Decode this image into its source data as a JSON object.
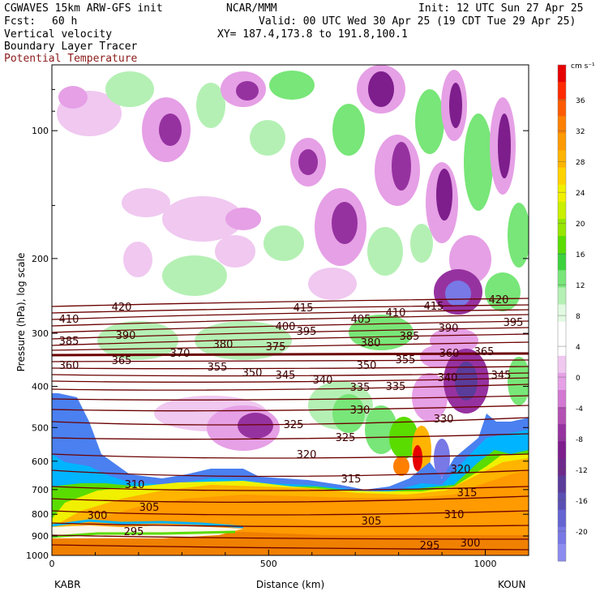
{
  "header": {
    "model": "CGWAVES 15km ARW-GFS init",
    "org": "NCAR/MMM",
    "init": "Init: 12 UTC Sun 27 Apr 25",
    "fcst_label": "Fcst:",
    "fcst_value": "60 h",
    "valid": "Valid: 00 UTC Wed 30 Apr 25 (19 CDT Tue 29 Apr 25)",
    "field1": "Vertical velocity",
    "xy": "XY= 187.4,173.8 to 191.8,100.1",
    "field2": "Boundary Layer Tracer",
    "field3": "Potential Temperature",
    "field3_color": "#8b1a1a"
  },
  "chart_data": {
    "type": "heatmap",
    "xlabel": "Distance (km)",
    "ylabel": "Pressure (hPa), log scale",
    "xlim": [
      0,
      1100
    ],
    "ylim": [
      1000,
      70
    ],
    "yscale": "log",
    "x_ticks": [
      0,
      500,
      1000
    ],
    "y_ticks": [
      100,
      200,
      300,
      400,
      500,
      600,
      700,
      800,
      900,
      1000
    ],
    "endpoints": {
      "left": "KABR",
      "right": "KOUN"
    },
    "colorbar": {
      "units": "cm s⁻¹",
      "labels": [
        "36",
        "32",
        "28",
        "24",
        "20",
        "16",
        "12",
        "8",
        "4",
        "0",
        "-4",
        "-8",
        "-12",
        "-16",
        "-20"
      ],
      "colors": [
        "#e60000",
        "#ff2a00",
        "#ff5a00",
        "#ff8000",
        "#ff9a00",
        "#ffb400",
        "#ffd200",
        "#f0f000",
        "#c8f000",
        "#96e600",
        "#5adc00",
        "#3cd23c",
        "#78e678",
        "#b4f0b4",
        "#e1fae1",
        "#ffffff",
        "#ffffff",
        "#f0c8f0",
        "#e6a0e6",
        "#d278d2",
        "#b450b4",
        "#9632a0",
        "#7d1e8c",
        "#6e288c",
        "#5a3c9b",
        "#5a50b4",
        "#6464d2",
        "#7878e6",
        "#8c8cf0"
      ]
    },
    "theta_labels": [
      "420",
      "410",
      "385",
      "360",
      "390",
      "365",
      "380",
      "370",
      "355",
      "400",
      "375",
      "350",
      "345",
      "415",
      "395",
      "405",
      "380",
      "340",
      "335",
      "410",
      "385",
      "390",
      "415",
      "420",
      "395",
      "360",
      "355",
      "365",
      "350",
      "340",
      "345",
      "330",
      "335",
      "325",
      "330",
      "325",
      "320",
      "315",
      "320",
      "315",
      "310",
      "305",
      "300",
      "295",
      "310",
      "305",
      "300",
      "295"
    ]
  }
}
